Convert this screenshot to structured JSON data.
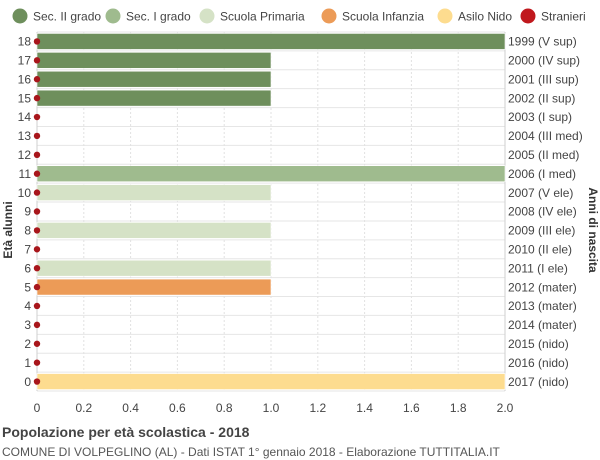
{
  "chart_data": {
    "type": "bar",
    "orientation": "horizontal",
    "title": "Popolazione per età scolastica - 2018",
    "subtitle": "COMUNE DI VOLPEGLINO (AL) - Dati ISTAT 1° gennaio 2018 - Elaborazione TUTTITALIA.IT",
    "ylabel_left": "Età alunni",
    "ylabel_right": "Anni di nascita",
    "xlim": [
      0,
      2.0
    ],
    "xticks": [
      "0",
      "0.2",
      "0.4",
      "0.6",
      "0.8",
      "1.0",
      "1.2",
      "1.4",
      "1.6",
      "1.8",
      "2.0"
    ],
    "grid": true,
    "legend_position": "top",
    "legend": [
      {
        "name": "Sec. II grado",
        "color": "#6e8f5c"
      },
      {
        "name": "Sec. I grado",
        "color": "#9fbb8e"
      },
      {
        "name": "Scuola Primaria",
        "color": "#d5e2c6"
      },
      {
        "name": "Scuola Infanzia",
        "color": "#ec9b57"
      },
      {
        "name": "Asilo Nido",
        "color": "#fddc8f"
      },
      {
        "name": "Stranieri",
        "color": "#c0181d"
      }
    ],
    "rows": [
      {
        "age": "18",
        "birth": "1999 (V sup)",
        "value": 2,
        "category": "Sec. II grado",
        "stranieri": 0
      },
      {
        "age": "17",
        "birth": "2000 (IV sup)",
        "value": 1,
        "category": "Sec. II grado",
        "stranieri": 0
      },
      {
        "age": "16",
        "birth": "2001 (III sup)",
        "value": 1,
        "category": "Sec. II grado",
        "stranieri": 0
      },
      {
        "age": "15",
        "birth": "2002 (II sup)",
        "value": 1,
        "category": "Sec. II grado",
        "stranieri": 0
      },
      {
        "age": "14",
        "birth": "2003 (I sup)",
        "value": 0,
        "category": "Sec. II grado",
        "stranieri": 0
      },
      {
        "age": "13",
        "birth": "2004 (III med)",
        "value": 0,
        "category": "Sec. I grado",
        "stranieri": 0
      },
      {
        "age": "12",
        "birth": "2005 (II med)",
        "value": 0,
        "category": "Sec. I grado",
        "stranieri": 0
      },
      {
        "age": "11",
        "birth": "2006 (I med)",
        "value": 2,
        "category": "Sec. I grado",
        "stranieri": 0
      },
      {
        "age": "10",
        "birth": "2007 (V ele)",
        "value": 1,
        "category": "Scuola Primaria",
        "stranieri": 0
      },
      {
        "age": "9",
        "birth": "2008 (IV ele)",
        "value": 0,
        "category": "Scuola Primaria",
        "stranieri": 0
      },
      {
        "age": "8",
        "birth": "2009 (III ele)",
        "value": 1,
        "category": "Scuola Primaria",
        "stranieri": 0
      },
      {
        "age": "7",
        "birth": "2010 (II ele)",
        "value": 0,
        "category": "Scuola Primaria",
        "stranieri": 0
      },
      {
        "age": "6",
        "birth": "2011 (I ele)",
        "value": 1,
        "category": "Scuola Primaria",
        "stranieri": 0
      },
      {
        "age": "5",
        "birth": "2012 (mater)",
        "value": 1,
        "category": "Scuola Infanzia",
        "stranieri": 0
      },
      {
        "age": "4",
        "birth": "2013 (mater)",
        "value": 0,
        "category": "Scuola Infanzia",
        "stranieri": 0
      },
      {
        "age": "3",
        "birth": "2014 (mater)",
        "value": 0,
        "category": "Scuola Infanzia",
        "stranieri": 0
      },
      {
        "age": "2",
        "birth": "2015 (nido)",
        "value": 0,
        "category": "Asilo Nido",
        "stranieri": 0
      },
      {
        "age": "1",
        "birth": "2016 (nido)",
        "value": 0,
        "category": "Asilo Nido",
        "stranieri": 0
      },
      {
        "age": "0",
        "birth": "2017 (nido)",
        "value": 2,
        "category": "Asilo Nido",
        "stranieri": 0
      }
    ]
  }
}
